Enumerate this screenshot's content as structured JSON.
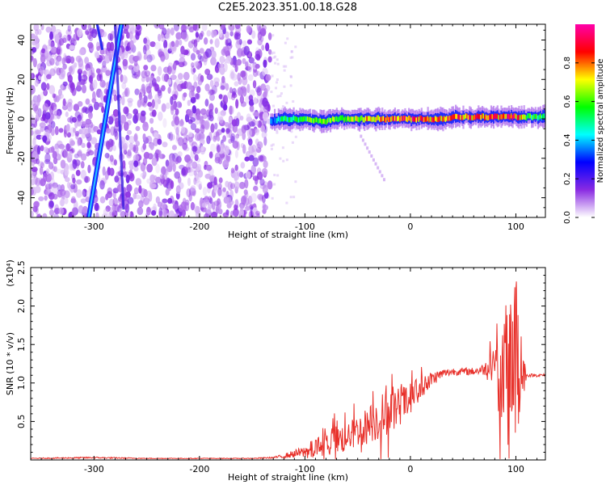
{
  "title": "C2E5.2023.351.00.18.G28",
  "chart_data": [
    {
      "type": "heatmap",
      "xlabel": "Height of straight line (km)",
      "ylabel": "Frequency (Hz)",
      "xlim": [
        -360,
        128
      ],
      "ylim": [
        -50,
        48
      ],
      "x_ticks": [
        -300,
        -200,
        -100,
        0,
        100
      ],
      "x_tick_labels": [
        "-300",
        "-200",
        "-100",
        "0",
        "100"
      ],
      "y_ticks": [
        -40,
        -20,
        0,
        20,
        40
      ],
      "y_tick_labels": [
        "-40",
        "-20",
        "0",
        "20",
        "40"
      ],
      "colorbar": {
        "label": "Normalized spectral amplitude",
        "range": [
          0,
          1
        ],
        "ticks": [
          0.0,
          0.2,
          0.4,
          0.6,
          0.8
        ],
        "tick_labels": [
          "0.0",
          "0.2",
          "0.4",
          "0.6",
          "0.8"
        ],
        "colors": [
          "#ffffff",
          "#8a2be2",
          "#0000ff",
          "#00ffff",
          "#00ff00",
          "#ffff00",
          "#ff0000",
          "#ff00aa"
        ]
      },
      "noise_region": {
        "x_range": [
          -360,
          -133
        ],
        "amplitude": 0.1
      },
      "drifting_line": {
        "x_start": -305,
        "y_start": -50,
        "x_end": -274,
        "y_end": 48,
        "amplitude": 0.3
      },
      "secondary_line": {
        "x_start": -280,
        "x_end": -272,
        "amplitude": 0.15
      },
      "signal_band": {
        "x": [
          -133,
          -120,
          -110,
          -100,
          -90,
          -80,
          -70,
          -60,
          -50,
          -40,
          -30,
          -20,
          -10,
          0,
          10,
          20,
          30,
          40,
          50,
          60,
          70,
          80,
          90,
          100,
          110,
          128
        ],
        "center_freq": [
          -1,
          0,
          0,
          0,
          -1,
          -1,
          0,
          0,
          0,
          0,
          0,
          0,
          0,
          0,
          0,
          0,
          0,
          1,
          1,
          1,
          1,
          1,
          1,
          1,
          1,
          1
        ],
        "amplitude": [
          0.35,
          0.55,
          0.55,
          0.6,
          0.65,
          0.65,
          0.7,
          0.7,
          0.7,
          0.8,
          0.85,
          0.88,
          0.9,
          0.9,
          0.85,
          0.85,
          0.85,
          0.85,
          0.85,
          0.88,
          0.88,
          0.88,
          0.9,
          0.88,
          0.6,
          0.55
        ]
      }
    },
    {
      "type": "line",
      "xlabel": "Height of straight line (km)",
      "ylabel": "SNR (10 * v/v)",
      "y_multiplier": "(x10⁴)",
      "xlim": [
        -360,
        128
      ],
      "ylim": [
        0,
        2.5
      ],
      "x_ticks": [
        -300,
        -200,
        -100,
        0,
        100
      ],
      "x_tick_labels": [
        "-300",
        "-200",
        "-100",
        "0",
        "100"
      ],
      "y_ticks": [
        0.5,
        1.0,
        1.5,
        2.0,
        2.5
      ],
      "y_tick_labels": [
        "0.5",
        "1.0",
        "1.5",
        "2.0",
        "2.5"
      ],
      "series": [
        {
          "color": "#e8302a",
          "x": [
            -360,
            -300,
            -250,
            -200,
            -150,
            -130,
            -120,
            -110,
            -100,
            -90,
            -80,
            -70,
            -60,
            -50,
            -40,
            -30,
            -20,
            -10,
            0,
            10,
            20,
            30,
            40,
            50,
            60,
            70,
            75,
            80,
            85,
            90,
            95,
            100,
            105,
            110,
            120,
            128
          ],
          "values": [
            0.02,
            0.03,
            0.02,
            0.02,
            0.02,
            0.03,
            0.05,
            0.08,
            0.1,
            0.15,
            0.2,
            0.25,
            0.3,
            0.38,
            0.45,
            0.55,
            0.62,
            0.7,
            0.8,
            0.95,
            1.05,
            1.12,
            1.15,
            1.15,
            1.15,
            1.18,
            1.22,
            1.25,
            1.0,
            1.2,
            1.3,
            1.5,
            1.25,
            1.1,
            1.1,
            1.1
          ],
          "noise_amplitude": [
            0.005,
            0.01,
            0.005,
            0.005,
            0.005,
            0.01,
            0.03,
            0.05,
            0.08,
            0.15,
            0.18,
            0.2,
            0.2,
            0.2,
            0.25,
            0.3,
            0.3,
            0.25,
            0.2,
            0.15,
            0.1,
            0.06,
            0.05,
            0.05,
            0.05,
            0.08,
            0.15,
            0.3,
            0.6,
            0.8,
            0.9,
            0.9,
            0.7,
            0.02,
            0.02,
            0.02
          ]
        }
      ]
    }
  ]
}
